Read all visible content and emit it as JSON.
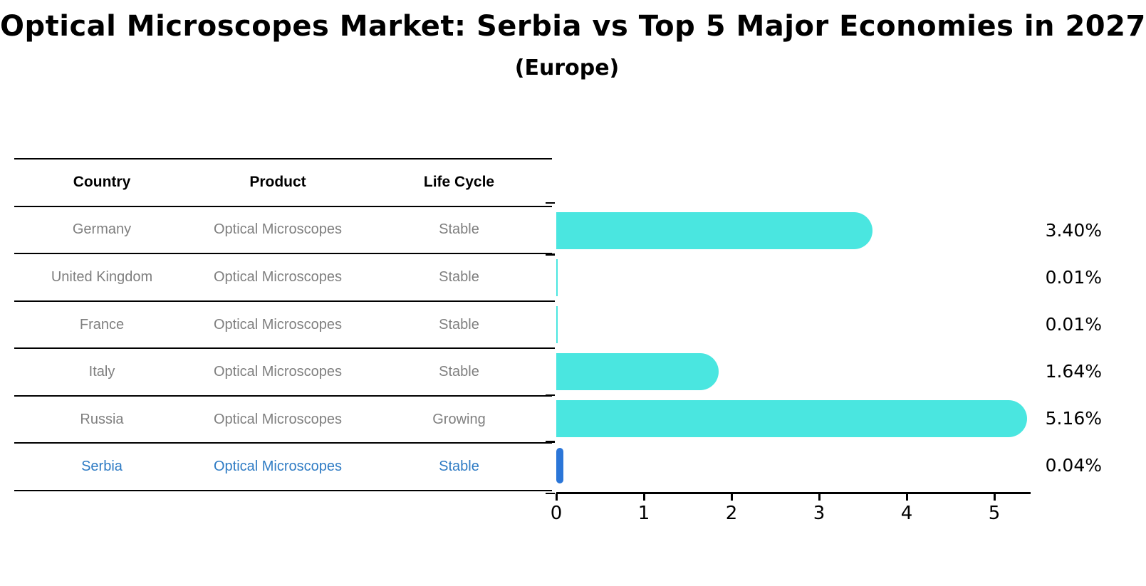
{
  "title": "Optical Microscopes Market: Serbia vs Top 5 Major Economies in 2027",
  "subtitle": "(Europe)",
  "table": {
    "headers": [
      "Country",
      "Product",
      "Life Cycle"
    ],
    "row_text_color": "#7f7f7f",
    "header_text_color": "#000000",
    "highlight_text_color": "#2e7bc4",
    "rows": [
      {
        "country": "Germany",
        "product": "Optical Microscopes",
        "life_cycle": "Stable",
        "highlight": false
      },
      {
        "country": "United Kingdom",
        "product": "Optical Microscopes",
        "life_cycle": "Stable",
        "highlight": false
      },
      {
        "country": "France",
        "product": "Optical Microscopes",
        "life_cycle": "Stable",
        "highlight": false
      },
      {
        "country": "Italy",
        "product": "Optical Microscopes",
        "life_cycle": "Stable",
        "highlight": false
      },
      {
        "country": "Russia",
        "product": "Optical Microscopes",
        "life_cycle": "Growing",
        "highlight": false
      },
      {
        "country": "Serbia",
        "product": "Optical Microscopes",
        "life_cycle": "Stable",
        "highlight": true
      }
    ]
  },
  "chart_data": {
    "type": "bar",
    "orientation": "horizontal",
    "title": "Optical Microscopes Market: Serbia vs Top 5 Major Economies in 2027 (Europe)",
    "categories": [
      "Germany",
      "United Kingdom",
      "France",
      "Italy",
      "Russia",
      "Serbia"
    ],
    "values": [
      3.4,
      0.01,
      0.01,
      1.64,
      5.16,
      0.04
    ],
    "value_labels": [
      "3.40%",
      "0.01%",
      "0.01%",
      "1.64%",
      "5.16%",
      "0.04%"
    ],
    "unit": "%",
    "xlabel": "",
    "ylabel": "",
    "xlim": [
      0,
      5.41
    ],
    "x_ticks": [
      0,
      1,
      2,
      3,
      4,
      5
    ],
    "grid": false,
    "legend": false,
    "bar_color": "#4ae6e0",
    "highlight_index": 5,
    "highlight_bar_color": "#2b76d8",
    "axis_color": "#000000"
  }
}
